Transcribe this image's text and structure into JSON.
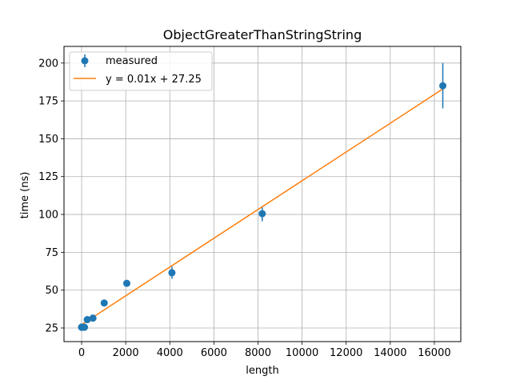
{
  "chart_data": {
    "type": "scatter",
    "title": "ObjectGreaterThanStringString",
    "xlabel": "length",
    "ylabel": "time (ns)",
    "xlim": [
      -800,
      17200
    ],
    "ylim": [
      16,
      211
    ],
    "xticks": [
      0,
      2000,
      4000,
      6000,
      8000,
      10000,
      12000,
      14000,
      16000
    ],
    "yticks": [
      25,
      50,
      75,
      100,
      125,
      150,
      175,
      200
    ],
    "grid": true,
    "legend_position": "top-left",
    "series": [
      {
        "name": "measured",
        "kind": "errorbar",
        "color": "#1f77b4",
        "x": [
          1,
          2,
          4,
          8,
          16,
          32,
          64,
          128,
          256,
          512,
          1024,
          2048,
          4096,
          8192,
          16384
        ],
        "y": [
          25.5,
          25.5,
          25.5,
          25.5,
          25.5,
          25.5,
          25.5,
          25.5,
          30.5,
          31.5,
          41.5,
          54.5,
          61.5,
          100.5,
          185
        ],
        "yerr": [
          0.5,
          0.5,
          0.5,
          0.5,
          0.5,
          0.5,
          0.5,
          0.5,
          0.8,
          0.8,
          1,
          1,
          4,
          5,
          15
        ]
      },
      {
        "name": "y = 0.01x + 27.25",
        "kind": "line",
        "color": "#ff7f0e",
        "slope": 0.0095,
        "intercept": 27.25,
        "x": [
          1,
          16384
        ]
      }
    ]
  }
}
